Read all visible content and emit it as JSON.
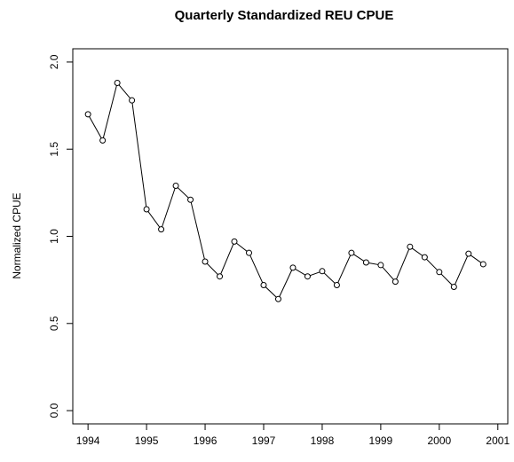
{
  "chart_data": {
    "type": "line",
    "title": "Quarterly Standardized REU CPUE",
    "y_label": "Normalized CPUE",
    "x": [
      1994,
      1994.25,
      1994.5,
      1994.75,
      1995,
      1995.25,
      1995.5,
      1995.75,
      1996,
      1996.25,
      1996.5,
      1996.75,
      1997,
      1997.25,
      1997.5,
      1997.75,
      1998,
      1998.25,
      1998.5,
      1998.75,
      1999,
      1999.25,
      1999.5,
      1999.75,
      2000,
      2000.25,
      2000.5,
      2000.75
    ],
    "series": [
      {
        "name": "CPUE",
        "color": "#000000",
        "values": [
          1.7,
          1.55,
          1.88,
          1.78,
          1.155,
          1.04,
          1.29,
          1.21,
          0.855,
          0.77,
          0.97,
          0.905,
          0.72,
          0.64,
          0.82,
          0.77,
          0.8,
          0.72,
          0.905,
          0.85,
          0.835,
          0.74,
          0.94,
          0.88,
          0.795,
          0.71,
          0.9,
          0.84
        ]
      }
    ],
    "xlim": [
      1993.74,
      2001.17
    ],
    "ylim": [
      -0.076,
      2.076
    ],
    "xticks": [
      1994,
      1995,
      1996,
      1997,
      1998,
      1999,
      2000,
      2001
    ],
    "yticks": [
      {
        "value": 0,
        "label": "0.0"
      },
      {
        "value": 0.5,
        "label": "0.5"
      },
      {
        "value": 1,
        "label": "1.0"
      },
      {
        "value": 1.5,
        "label": "1.5"
      },
      {
        "value": 2,
        "label": "2.0"
      }
    ],
    "grid": false
  }
}
